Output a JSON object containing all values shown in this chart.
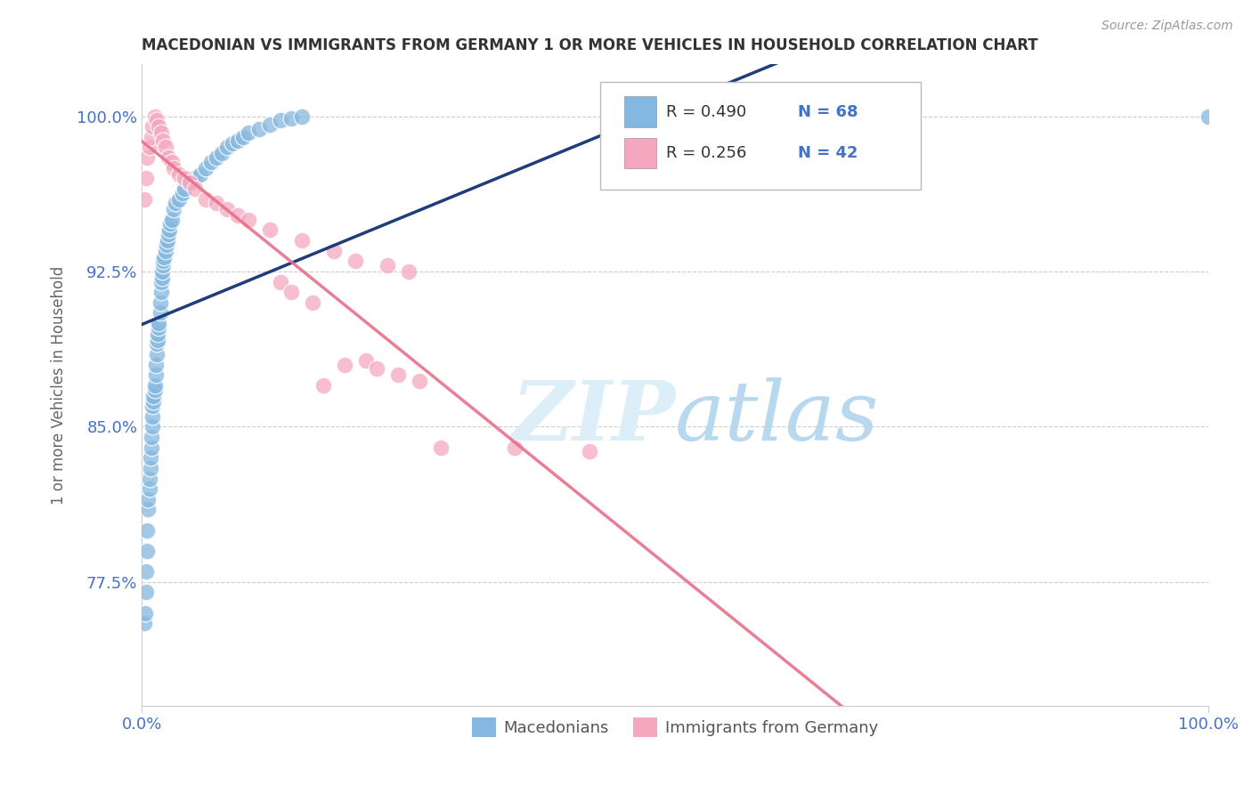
{
  "title": "MACEDONIAN VS IMMIGRANTS FROM GERMANY 1 OR MORE VEHICLES IN HOUSEHOLD CORRELATION CHART",
  "source": "Source: ZipAtlas.com",
  "ylabel": "1 or more Vehicles in Household",
  "xlim": [
    0.0,
    1.0
  ],
  "ylim": [
    0.715,
    1.025
  ],
  "yticks": [
    0.775,
    0.85,
    0.925,
    1.0
  ],
  "ytick_labels": [
    "77.5%",
    "85.0%",
    "92.5%",
    "100.0%"
  ],
  "xtick_labels": [
    "0.0%",
    "100.0%"
  ],
  "legend_r1": "R = 0.490",
  "legend_n1": "N = 68",
  "legend_r2": "R = 0.256",
  "legend_n2": "N = 42",
  "color_blue": "#85b8e0",
  "color_pink": "#f4a8bf",
  "trendline_blue": "#1f3d7a",
  "trendline_pink": "#e8708a",
  "background": "#ffffff",
  "macedonian_x": [
    0.002,
    0.003,
    0.004,
    0.004,
    0.005,
    0.005,
    0.006,
    0.006,
    0.007,
    0.007,
    0.008,
    0.008,
    0.009,
    0.009,
    0.01,
    0.01,
    0.01,
    0.011,
    0.011,
    0.012,
    0.012,
    0.013,
    0.013,
    0.014,
    0.014,
    0.015,
    0.015,
    0.016,
    0.016,
    0.017,
    0.017,
    0.018,
    0.018,
    0.019,
    0.019,
    0.02,
    0.02,
    0.021,
    0.022,
    0.023,
    0.024,
    0.025,
    0.026,
    0.027,
    0.028,
    0.03,
    0.032,
    0.035,
    0.038,
    0.04,
    0.045,
    0.05,
    0.055,
    0.06,
    0.065,
    0.07,
    0.075,
    0.08,
    0.085,
    0.09,
    0.095,
    0.1,
    0.11,
    0.12,
    0.13,
    0.14,
    0.15,
    1.0
  ],
  "macedonian_y": [
    0.755,
    0.76,
    0.77,
    0.78,
    0.79,
    0.8,
    0.81,
    0.815,
    0.82,
    0.825,
    0.83,
    0.835,
    0.84,
    0.845,
    0.85,
    0.855,
    0.86,
    0.862,
    0.865,
    0.868,
    0.87,
    0.875,
    0.88,
    0.885,
    0.89,
    0.892,
    0.895,
    0.898,
    0.9,
    0.905,
    0.91,
    0.915,
    0.92,
    0.922,
    0.925,
    0.928,
    0.93,
    0.932,
    0.935,
    0.938,
    0.94,
    0.943,
    0.945,
    0.948,
    0.95,
    0.955,
    0.958,
    0.96,
    0.963,
    0.965,
    0.968,
    0.97,
    0.972,
    0.975,
    0.978,
    0.98,
    0.982,
    0.985,
    0.987,
    0.988,
    0.99,
    0.992,
    0.994,
    0.996,
    0.998,
    0.999,
    1.0,
    1.0
  ],
  "germany_x": [
    0.002,
    0.004,
    0.005,
    0.007,
    0.009,
    0.01,
    0.012,
    0.014,
    0.016,
    0.018,
    0.02,
    0.022,
    0.025,
    0.028,
    0.03,
    0.035,
    0.04,
    0.045,
    0.05,
    0.06,
    0.07,
    0.08,
    0.09,
    0.1,
    0.12,
    0.15,
    0.18,
    0.2,
    0.23,
    0.25,
    0.17,
    0.19,
    0.13,
    0.14,
    0.16,
    0.21,
    0.22,
    0.24,
    0.26,
    0.28,
    0.35,
    0.42
  ],
  "germany_y": [
    0.96,
    0.97,
    0.98,
    0.985,
    0.99,
    0.995,
    1.0,
    0.998,
    0.995,
    0.992,
    0.988,
    0.985,
    0.98,
    0.978,
    0.975,
    0.972,
    0.97,
    0.968,
    0.965,
    0.96,
    0.958,
    0.955,
    0.952,
    0.95,
    0.945,
    0.94,
    0.935,
    0.93,
    0.928,
    0.925,
    0.87,
    0.88,
    0.92,
    0.915,
    0.91,
    0.882,
    0.878,
    0.875,
    0.872,
    0.84,
    0.84,
    0.838
  ]
}
